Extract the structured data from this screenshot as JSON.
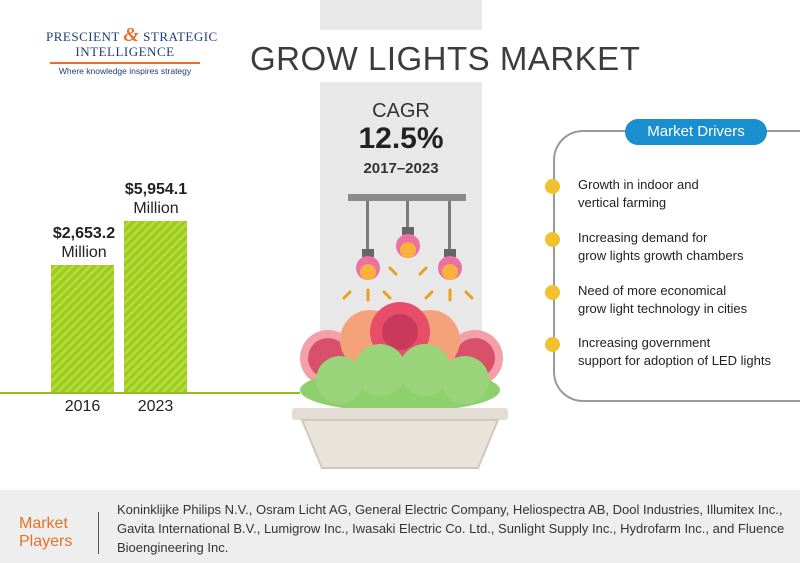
{
  "logo": {
    "line1_a": "PRESCIENT",
    "line1_amp": "&",
    "line1_b": "STRATEGIC",
    "line2": "INTELLIGENCE",
    "tagline": "Where knowledge inspires strategy"
  },
  "title": "GROW LIGHTS MARKET",
  "cagr": {
    "label": "CAGR",
    "value": "12.5%",
    "period": "2017–2023"
  },
  "chart_data": {
    "type": "bar",
    "categories": [
      "2016",
      "2023"
    ],
    "values": [
      2653.2,
      5954.1
    ],
    "value_labels": [
      {
        "amount": "$2,653.2",
        "unit": "Million"
      },
      {
        "amount": "$5,954.1",
        "unit": "Million"
      }
    ],
    "title": "",
    "xlabel": "",
    "ylabel": ""
  },
  "drivers": {
    "heading": "Market Drivers",
    "items": [
      {
        "line1": "Growth in indoor and",
        "line2": "vertical farming"
      },
      {
        "line1": "Increasing demand for",
        "line2": "grow lights growth chambers"
      },
      {
        "line1": "Need of more economical",
        "line2": "grow light technology in cities"
      },
      {
        "line1": "Increasing government",
        "line2": "support for adoption of LED lights"
      }
    ]
  },
  "players": {
    "label_line1": "Market",
    "label_line2": "Players",
    "text": "Koninklijke Philips N.V., Osram Licht AG, General Electric Company, Heliospectra AB, Dool Industries, Illumitex Inc., Gavita International B.V., Lumigrow Inc., Iwasaki Electric Co. Ltd., Sunlight Supply Inc., Hydrofarm Inc., and Fluence Bioengineering Inc."
  },
  "colors": {
    "accent_orange": "#e8702a",
    "bar_green": "#9ccb1e",
    "pill_blue": "#1a8fd0",
    "dot_yellow": "#f2c12e"
  }
}
